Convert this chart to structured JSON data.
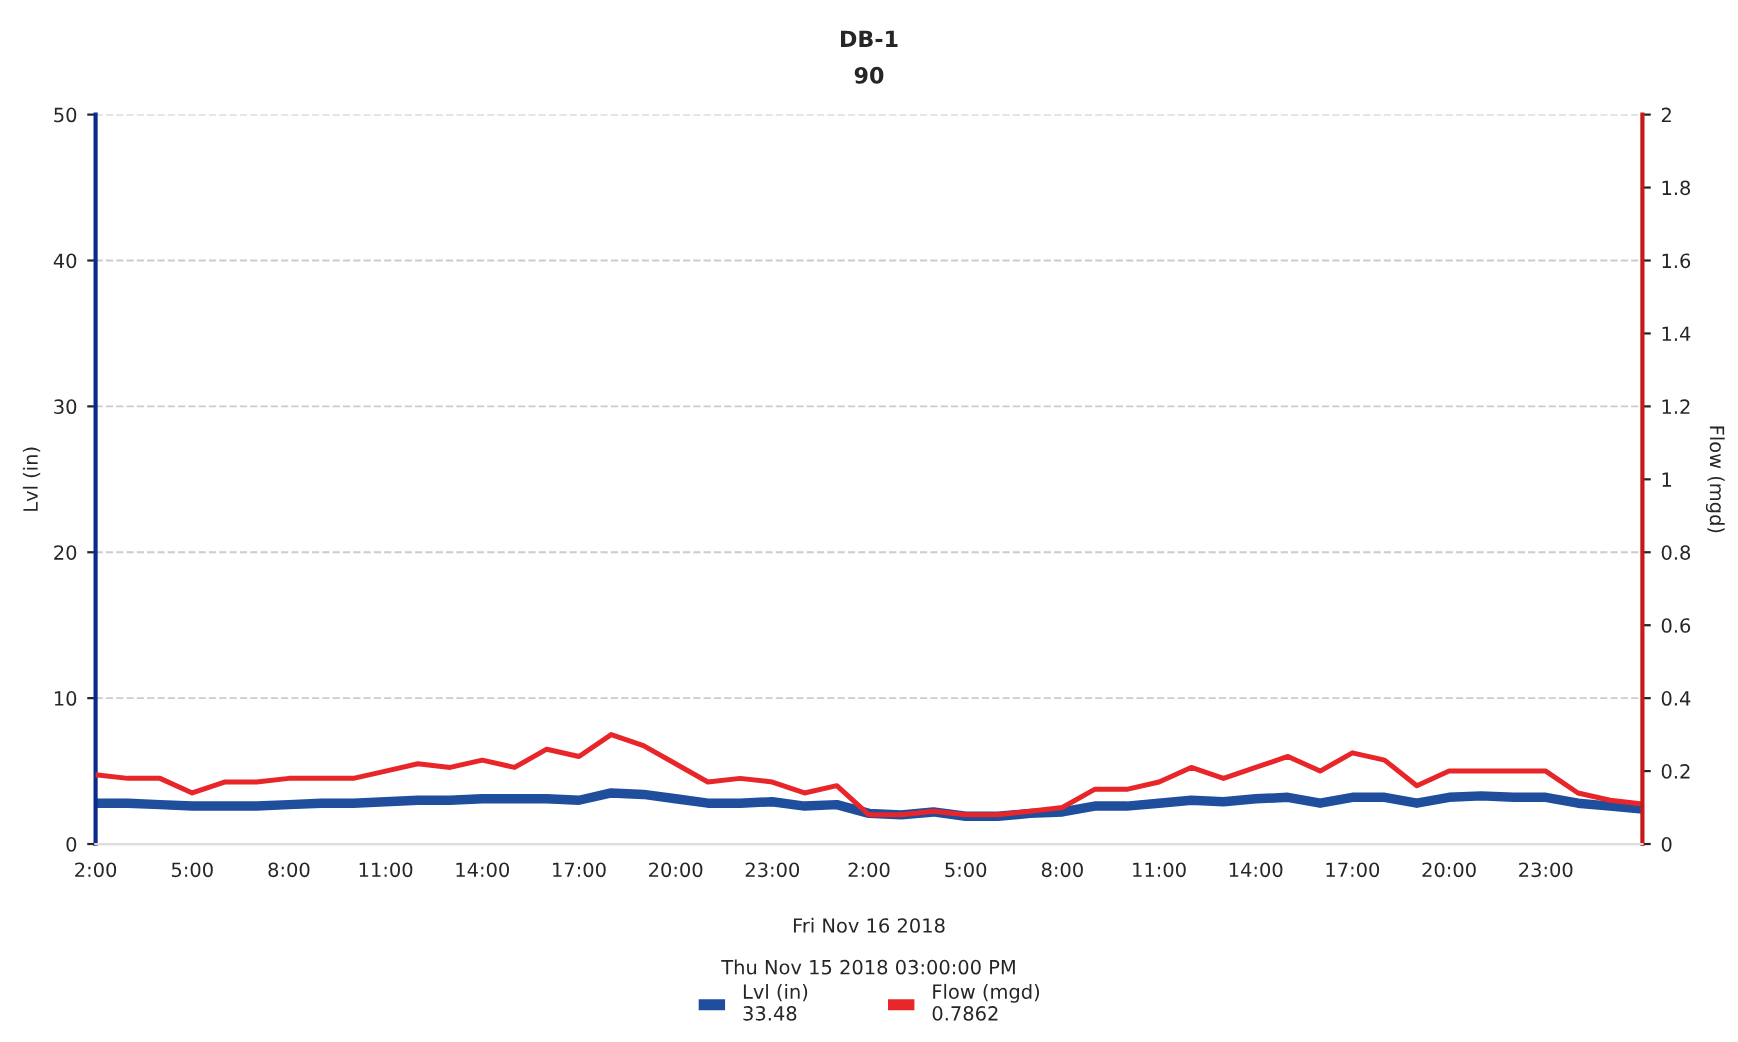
{
  "chart_data": {
    "type": "line",
    "title": "DB-1",
    "subtitle": "90",
    "ylabel": "Lvl (in)",
    "y2label": "Flow (mgd)",
    "x": [
      "2018-11-15T02:00",
      "2018-11-15T03:00",
      "2018-11-15T04:00",
      "2018-11-15T05:00",
      "2018-11-15T06:00",
      "2018-11-15T07:00",
      "2018-11-15T08:00",
      "2018-11-15T09:00",
      "2018-11-15T10:00",
      "2018-11-15T11:00",
      "2018-11-15T12:00",
      "2018-11-15T13:00",
      "2018-11-15T14:00",
      "2018-11-15T15:00",
      "2018-11-15T16:00",
      "2018-11-15T17:00",
      "2018-11-15T18:00",
      "2018-11-15T19:00",
      "2018-11-15T20:00",
      "2018-11-15T21:00",
      "2018-11-15T22:00",
      "2018-11-15T23:00",
      "2018-11-16T00:00",
      "2018-11-16T01:00",
      "2018-11-16T02:00",
      "2018-11-16T03:00",
      "2018-11-16T04:00",
      "2018-11-16T05:00",
      "2018-11-16T06:00",
      "2018-11-16T07:00",
      "2018-11-16T08:00",
      "2018-11-16T09:00",
      "2018-11-16T10:00",
      "2018-11-16T11:00",
      "2018-11-16T12:00",
      "2018-11-16T13:00",
      "2018-11-16T14:00",
      "2018-11-16T15:00",
      "2018-11-16T16:00",
      "2018-11-16T17:00",
      "2018-11-16T18:00",
      "2018-11-16T19:00",
      "2018-11-16T20:00",
      "2018-11-16T21:00",
      "2018-11-16T22:00",
      "2018-11-16T23:00",
      "2018-11-17T00:00",
      "2018-11-17T01:00",
      "2018-11-17T02:00"
    ],
    "xlim": [
      "2018-11-15T02:00",
      "2018-11-17T02:00"
    ],
    "xticks": [
      {
        "value": "2018-11-15T02:00",
        "label": "2:00"
      },
      {
        "value": "2018-11-15T05:00",
        "label": "5:00"
      },
      {
        "value": "2018-11-15T08:00",
        "label": "8:00"
      },
      {
        "value": "2018-11-15T11:00",
        "label": "11:00"
      },
      {
        "value": "2018-11-15T14:00",
        "label": "14:00"
      },
      {
        "value": "2018-11-15T17:00",
        "label": "17:00"
      },
      {
        "value": "2018-11-15T20:00",
        "label": "20:00"
      },
      {
        "value": "2018-11-15T23:00",
        "label": "23:00"
      },
      {
        "value": "2018-11-16T02:00",
        "label": "2:00"
      },
      {
        "value": "2018-11-16T05:00",
        "label": "5:00"
      },
      {
        "value": "2018-11-16T08:00",
        "label": "8:00"
      },
      {
        "value": "2018-11-16T11:00",
        "label": "11:00"
      },
      {
        "value": "2018-11-16T14:00",
        "label": "14:00"
      },
      {
        "value": "2018-11-16T17:00",
        "label": "17:00"
      },
      {
        "value": "2018-11-16T20:00",
        "label": "20:00"
      },
      {
        "value": "2018-11-16T23:00",
        "label": "23:00"
      }
    ],
    "ylim": [
      0,
      50
    ],
    "yticks": [
      0,
      10,
      20,
      30,
      40,
      50
    ],
    "y2lim": [
      0,
      2
    ],
    "y2ticks": [
      0,
      0.2,
      0.4,
      0.6,
      0.8,
      1,
      1.2,
      1.4,
      1.6,
      1.8,
      2
    ],
    "series": [
      {
        "name": "Lvl (in)\n33.48",
        "color": "#1f4e9c",
        "values": [
          2.8,
          2.8,
          2.7,
          2.6,
          2.6,
          2.6,
          2.7,
          2.8,
          2.8,
          2.9,
          3.0,
          3.0,
          3.1,
          3.1,
          3.1,
          3.0,
          3.5,
          3.4,
          3.1,
          2.8,
          2.8,
          2.9,
          2.6,
          2.7,
          2.1,
          2.0,
          2.2,
          1.9,
          1.9,
          2.1,
          2.2,
          2.6,
          2.6,
          2.8,
          3.0,
          2.9,
          3.1,
          3.2,
          2.8,
          3.2,
          3.2,
          2.8,
          3.2,
          3.3,
          3.2,
          3.2,
          2.8,
          2.6,
          2.4
        ]
      },
      {
        "name": "Flow (mgd)\n0.7862",
        "color": "#e8262a",
        "axis": "y2",
        "values": [
          0.19,
          0.18,
          0.18,
          0.14,
          0.17,
          0.17,
          0.18,
          0.18,
          0.18,
          0.2,
          0.22,
          0.21,
          0.23,
          0.21,
          0.26,
          0.24,
          0.3,
          0.27,
          0.22,
          0.17,
          0.18,
          0.17,
          0.14,
          0.16,
          0.08,
          0.08,
          0.09,
          0.08,
          0.08,
          0.09,
          0.1,
          0.15,
          0.15,
          0.17,
          0.21,
          0.18,
          0.21,
          0.24,
          0.2,
          0.25,
          0.23,
          0.16,
          0.2,
          0.2,
          0.2,
          0.2,
          0.14,
          0.12,
          0.11
        ]
      }
    ],
    "annotations": [
      "Fri Nov 16 2018",
      "Thu Nov 15 2018 03:00:00 PM"
    ],
    "grid": "y",
    "legend": "bottom",
    "marker": "none",
    "line_style": "solid"
  }
}
